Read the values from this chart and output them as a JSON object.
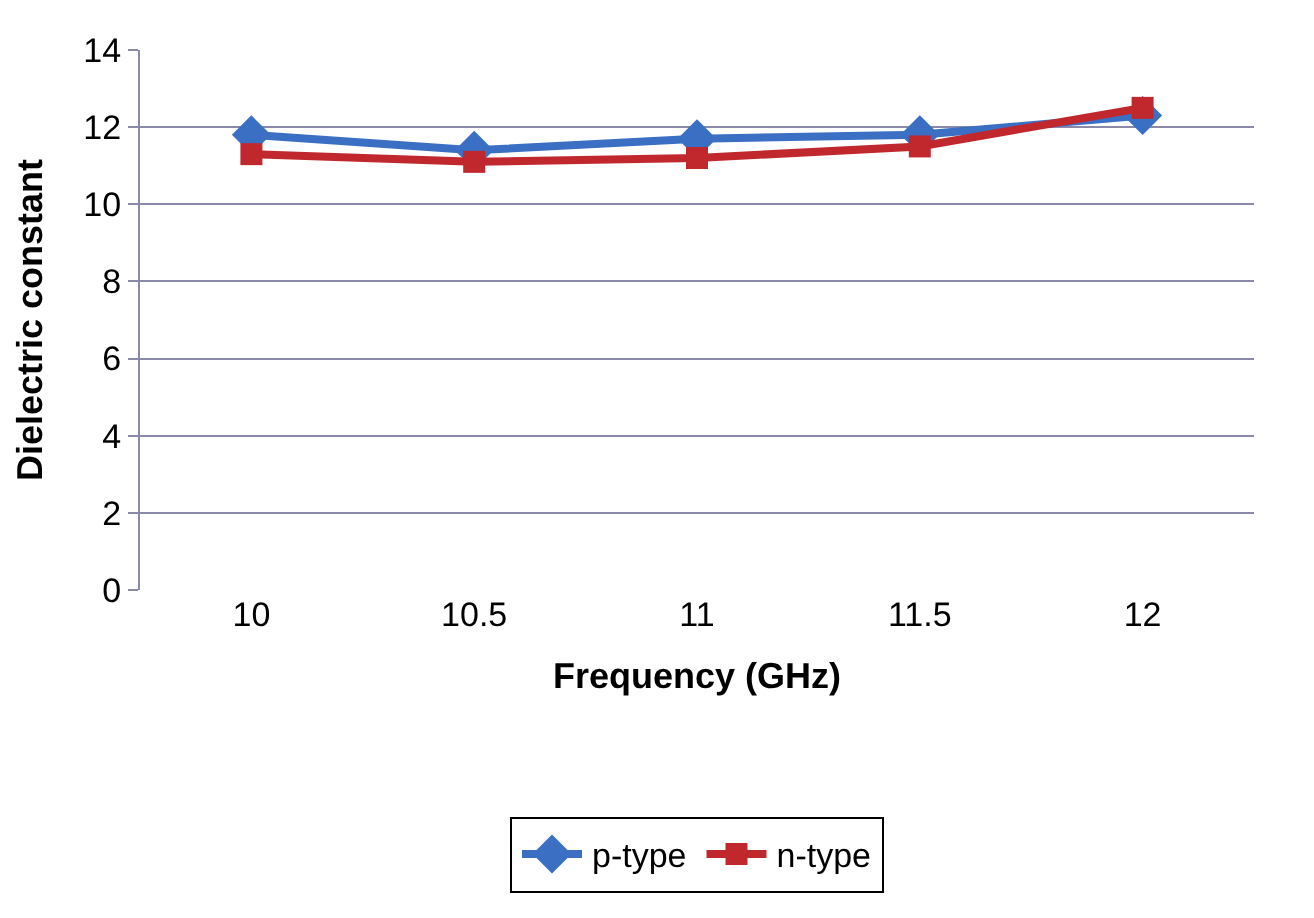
{
  "chart_data": {
    "type": "line",
    "xlabel": "Frequency (GHz)",
    "ylabel": "Dielectric constant",
    "categories": [
      "10",
      "10.5",
      "11",
      "11.5",
      "12"
    ],
    "series": [
      {
        "name": "p-type",
        "color": "#3a6fc4",
        "values": [
          11.8,
          11.4,
          11.7,
          11.8,
          12.3
        ],
        "marker": "diamond"
      },
      {
        "name": "n-type",
        "color": "#c0282e",
        "values": [
          11.3,
          11.1,
          11.2,
          11.5,
          12.5
        ],
        "marker": "square"
      }
    ],
    "ylim": [
      0,
      14
    ],
    "yticks": [
      0,
      2,
      4,
      6,
      8,
      10,
      12,
      14
    ],
    "grid": "y",
    "legend": "bottom",
    "line_style": "solid"
  }
}
